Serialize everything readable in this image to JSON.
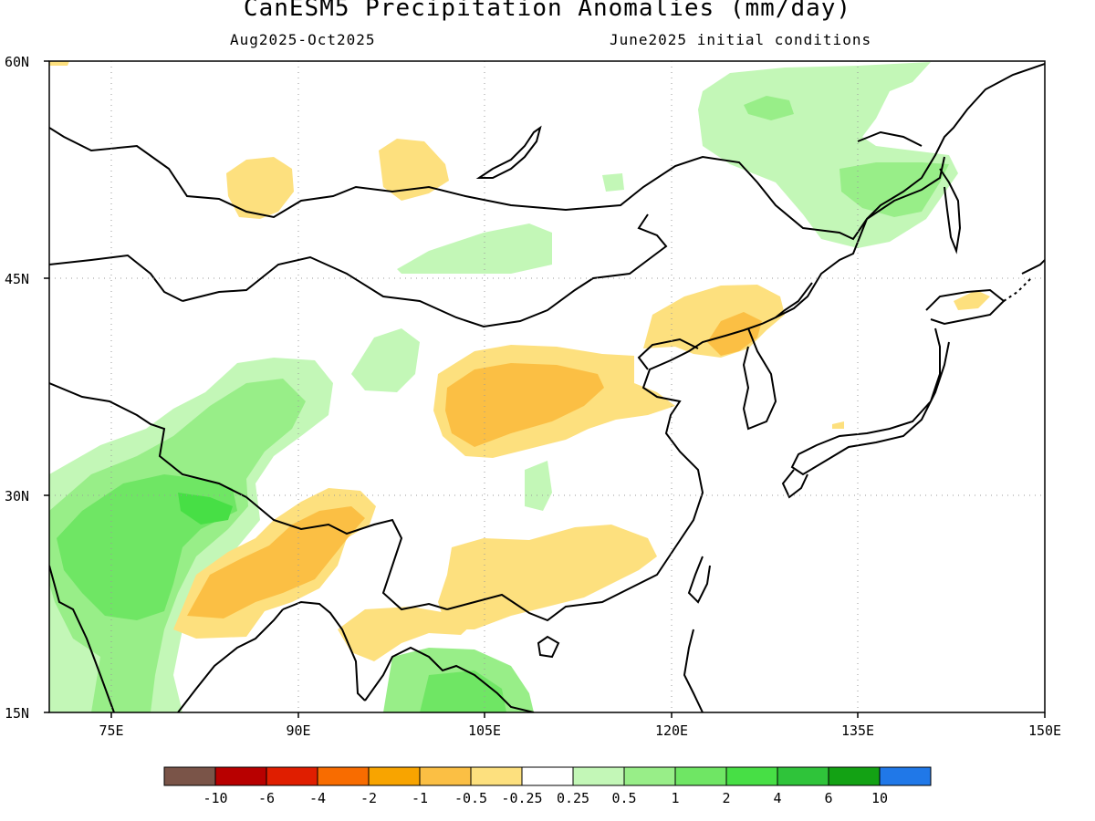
{
  "header": {
    "title": "CanESM5 Precipitation Anomalies (mm/day)",
    "period": "Aug2025-Oct2025",
    "init": "June2025 initial conditions"
  },
  "axes": {
    "lat_labels": [
      "60N",
      "45N",
      "30N",
      "15N"
    ],
    "lon_labels": [
      "75E",
      "90E",
      "105E",
      "120E",
      "135E",
      "150E"
    ]
  },
  "colorbar": {
    "colors": [
      "#7a5448",
      "#b80000",
      "#e01e00",
      "#f86c00",
      "#f8a400",
      "#fbbf44",
      "#fde07e",
      "#ffffff",
      "#c3f7b7",
      "#98ee88",
      "#6fe664",
      "#47df45",
      "#2fc43a",
      "#13a214",
      "#2078e8"
    ],
    "labels": [
      "-10",
      "-6",
      "-4",
      "-2",
      "-1",
      "-0.5",
      "-0.25",
      "0.25",
      "0.5",
      "1",
      "2",
      "4",
      "6",
      "10"
    ]
  },
  "map": {
    "region": "East Asia",
    "lon_range": [
      "70E",
      "150E"
    ],
    "lat_range": [
      "15N",
      "60N"
    ],
    "anomaly_colors": {
      "dry_light": "#fde07e",
      "dry_medium": "#fbbf44",
      "wet_light": "#c3f7b7",
      "wet_medium": "#98ee88",
      "wet_strong": "#6fe664",
      "wet_stronger": "#47df45"
    }
  }
}
